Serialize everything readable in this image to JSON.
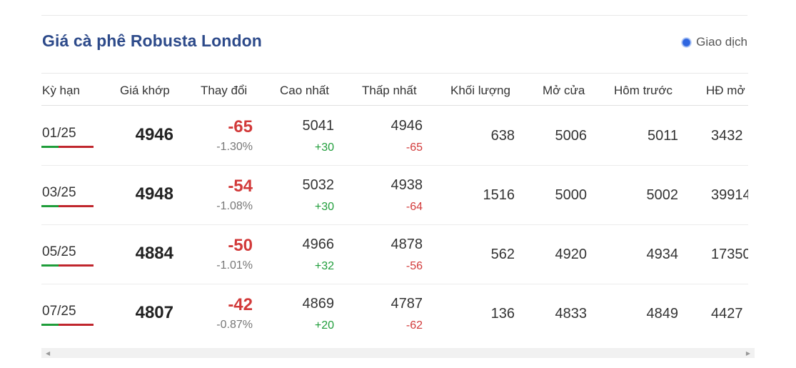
{
  "title": "Giá cà phê Robusta London",
  "status": {
    "label": "Giao dịch",
    "dot_color": "#2f66e0"
  },
  "colors": {
    "up": "#1f9d3a",
    "down": "#d23a3a",
    "title": "#2d4a8a"
  },
  "table": {
    "headers": [
      "Kỳ hạn",
      "Giá khớp",
      "Thay đổi",
      "Cao nhất",
      "Thấp nhất",
      "Khối lượng",
      "Mở cửa",
      "Hôm trước",
      "HĐ mở"
    ],
    "rows": [
      {
        "term": "01/25",
        "match": "4946",
        "change": "-65",
        "change_pct": "-1.30%",
        "high": "5041",
        "high_diff": "+30",
        "low": "4946",
        "low_diff": "-65",
        "volume": "638",
        "open": "5006",
        "prev": "5011",
        "open_interest": "3432"
      },
      {
        "term": "03/25",
        "match": "4948",
        "change": "-54",
        "change_pct": "-1.08%",
        "high": "5032",
        "high_diff": "+30",
        "low": "4938",
        "low_diff": "-64",
        "volume": "1516",
        "open": "5000",
        "prev": "5002",
        "open_interest": "39914"
      },
      {
        "term": "05/25",
        "match": "4884",
        "change": "-50",
        "change_pct": "-1.01%",
        "high": "4966",
        "high_diff": "+32",
        "low": "4878",
        "low_diff": "-56",
        "volume": "562",
        "open": "4920",
        "prev": "4934",
        "open_interest": "17350"
      },
      {
        "term": "07/25",
        "match": "4807",
        "change": "-42",
        "change_pct": "-0.87%",
        "high": "4869",
        "high_diff": "+20",
        "low": "4787",
        "low_diff": "-62",
        "volume": "136",
        "open": "4833",
        "prev": "4849",
        "open_interest": "4427"
      }
    ]
  },
  "scrollbar": {
    "left_icon": "scroll-left-arrow-icon",
    "right_icon": "scroll-right-arrow-icon"
  }
}
